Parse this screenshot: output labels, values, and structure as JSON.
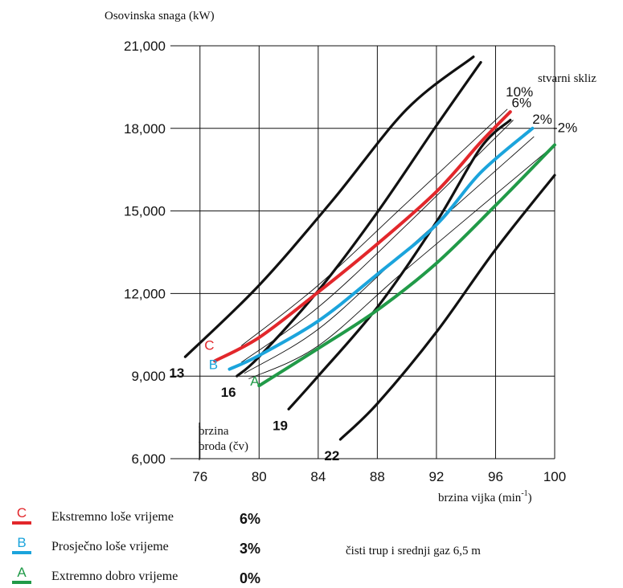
{
  "chart_data": {
    "type": "line",
    "title": "",
    "ylabel": "Osovinska snaga (kW)",
    "xlabel_main": "brzina vijka (min",
    "xlabel_sup": "-1",
    "xlabel_close": ")",
    "xlim": [
      74,
      100
    ],
    "ylim": [
      6000,
      21000
    ],
    "x_ticks": [
      76,
      80,
      84,
      88,
      92,
      96,
      100
    ],
    "y_ticks": [
      6000,
      9000,
      12000,
      15000,
      18000,
      21000
    ],
    "y_tick_labels": [
      "6,000",
      "9,000",
      "12,000",
      "15,000",
      "18,000",
      "21,000"
    ],
    "grid": true,
    "ship_speed_label": [
      "brzina",
      "broda (čv)"
    ],
    "slip_header": "stvarni skliz",
    "speed_curves": [
      {
        "label": "13",
        "points": [
          [
            75,
            9700
          ],
          [
            80,
            12300
          ],
          [
            85,
            15400
          ],
          [
            90,
            18700
          ],
          [
            94.5,
            20600
          ]
        ]
      },
      {
        "label": "16",
        "points": [
          [
            78.5,
            9000
          ],
          [
            80,
            9700
          ],
          [
            84,
            12100
          ],
          [
            88,
            14950
          ],
          [
            92,
            18100
          ],
          [
            95,
            20400
          ]
        ]
      },
      {
        "label": "19",
        "points": [
          [
            82,
            7800
          ],
          [
            84,
            9000
          ],
          [
            88,
            11500
          ],
          [
            92,
            14600
          ],
          [
            95,
            17300
          ],
          [
            97,
            18300
          ]
        ]
      },
      {
        "label": "22",
        "points": [
          [
            85.5,
            6700
          ],
          [
            88,
            8000
          ],
          [
            92,
            10600
          ],
          [
            96,
            13600
          ],
          [
            100,
            16300
          ]
        ]
      }
    ],
    "slip_lines": [
      {
        "label": "10%",
        "points": [
          [
            78.8,
            10100
          ],
          [
            84,
            12300
          ],
          [
            90,
            15300
          ],
          [
            96.8,
            18700
          ]
        ]
      },
      {
        "label": "6%",
        "points": [
          [
            78.8,
            9500
          ],
          [
            84,
            11500
          ],
          [
            90,
            14500
          ],
          [
            97.2,
            18300
          ]
        ]
      },
      {
        "label": "2%",
        "points": [
          [
            79.0,
            9100
          ],
          [
            84,
            10700
          ],
          [
            90,
            13600
          ],
          [
            98.6,
            17700
          ]
        ]
      },
      {
        "label": "-2%",
        "points": [
          [
            79.3,
            8900
          ],
          [
            84,
            10100
          ],
          [
            90,
            12900
          ],
          [
            100,
            17400
          ]
        ]
      }
    ],
    "series": [
      {
        "name": "C",
        "color": "#e2272b",
        "label_x": 76.3,
        "label_y": 9950,
        "points": [
          [
            77,
            9550
          ],
          [
            80,
            10400
          ],
          [
            84,
            12050
          ],
          [
            88,
            13800
          ],
          [
            92,
            15700
          ],
          [
            95,
            17500
          ],
          [
            97,
            18600
          ]
        ]
      },
      {
        "name": "B",
        "color": "#1ba4dc",
        "label_x": 76.6,
        "label_y": 9250,
        "points": [
          [
            78,
            9250
          ],
          [
            80,
            9750
          ],
          [
            84,
            11000
          ],
          [
            88,
            12700
          ],
          [
            92,
            14500
          ],
          [
            95,
            16400
          ],
          [
            98.5,
            18000
          ]
        ]
      },
      {
        "name": "A",
        "color": "#219a48",
        "label_x": 79.4,
        "label_y": 8650,
        "points": [
          [
            80,
            8650
          ],
          [
            84,
            10000
          ],
          [
            88,
            11400
          ],
          [
            92,
            13100
          ],
          [
            96,
            15200
          ],
          [
            100,
            17400
          ]
        ]
      }
    ],
    "legend": [
      {
        "key": "C",
        "color": "#e2272b",
        "text": "Ekstremno loše vrijeme",
        "value": "6%"
      },
      {
        "key": "B",
        "color": "#1ba4dc",
        "text": "Prosječno loše vrijeme",
        "value": "3%"
      },
      {
        "key": "A",
        "color": "#219a48",
        "text": "Extremno dobro vrijeme",
        "value": "0%"
      }
    ],
    "note": "čisti trup i srednji gaz 6,5 m"
  }
}
